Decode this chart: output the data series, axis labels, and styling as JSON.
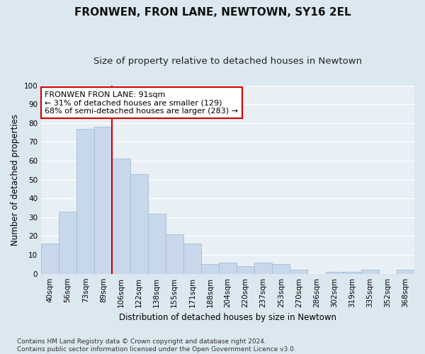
{
  "title": "FRONWEN, FRON LANE, NEWTOWN, SY16 2EL",
  "subtitle": "Size of property relative to detached houses in Newtown",
  "xlabel": "Distribution of detached houses by size in Newtown",
  "ylabel": "Number of detached properties",
  "categories": [
    "40sqm",
    "56sqm",
    "73sqm",
    "89sqm",
    "106sqm",
    "122sqm",
    "138sqm",
    "155sqm",
    "171sqm",
    "188sqm",
    "204sqm",
    "220sqm",
    "237sqm",
    "253sqm",
    "270sqm",
    "286sqm",
    "302sqm",
    "319sqm",
    "335sqm",
    "352sqm",
    "368sqm"
  ],
  "values": [
    16,
    33,
    77,
    78,
    61,
    53,
    32,
    21,
    16,
    5,
    6,
    4,
    6,
    5,
    2,
    0,
    1,
    1,
    2,
    0,
    2
  ],
  "bar_color": "#c8d8ea",
  "bar_edge_color": "#a0bfd4",
  "property_line_x": 3.5,
  "annotation_text": "FRONWEN FRON LANE: 91sqm\n← 31% of detached houses are smaller (129)\n68% of semi-detached houses are larger (283) →",
  "annotation_box_color": "#ffffff",
  "annotation_box_edge": "#cc0000",
  "line_color": "#cc0000",
  "fig_bg_color": "#dce8f0",
  "plot_bg_color": "#e8eff5",
  "grid_color": "#ffffff",
  "footer": "Contains HM Land Registry data © Crown copyright and database right 2024.\nContains public sector information licensed under the Open Government Licence v3.0.",
  "ylim": [
    0,
    100
  ],
  "title_fontsize": 11,
  "subtitle_fontsize": 9.5,
  "tick_fontsize": 7.5,
  "axis_label_fontsize": 8.5,
  "annotation_fontsize": 8,
  "footer_fontsize": 6.5
}
